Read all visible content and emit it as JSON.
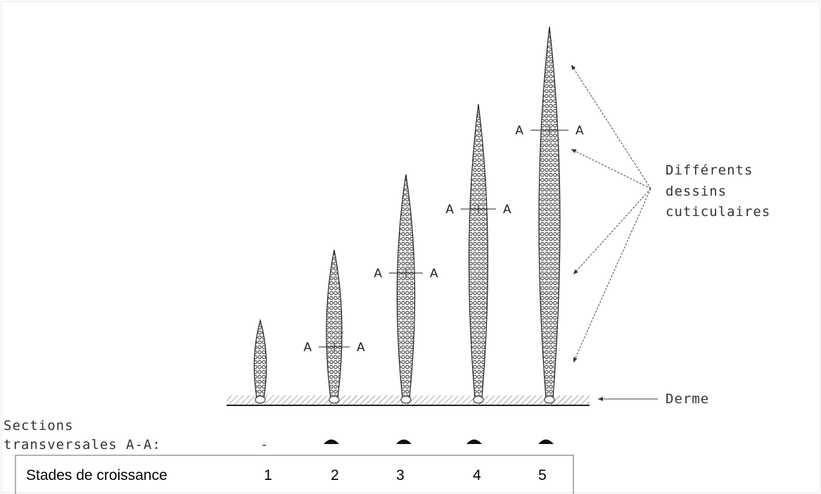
{
  "hairs": [
    {
      "stage": "2",
      "section_left": "A",
      "section_right": "A"
    },
    {
      "stage": "3",
      "section_left": "A",
      "section_right": "A"
    },
    {
      "stage": "4",
      "section_left": "A",
      "section_right": "A"
    },
    {
      "stage": "5",
      "section_left": "A",
      "section_right": "A"
    }
  ],
  "annotation": [
    "Différents",
    "dessins",
    "cuticulaires"
  ],
  "derme": "Derme",
  "sections": {
    "lines": [
      "Sections",
      "transversales A-A:"
    ],
    "stage1": "-"
  },
  "table": {
    "header": "Stades de croissance",
    "stages": [
      "1",
      "2",
      "3",
      "4",
      "5"
    ]
  }
}
